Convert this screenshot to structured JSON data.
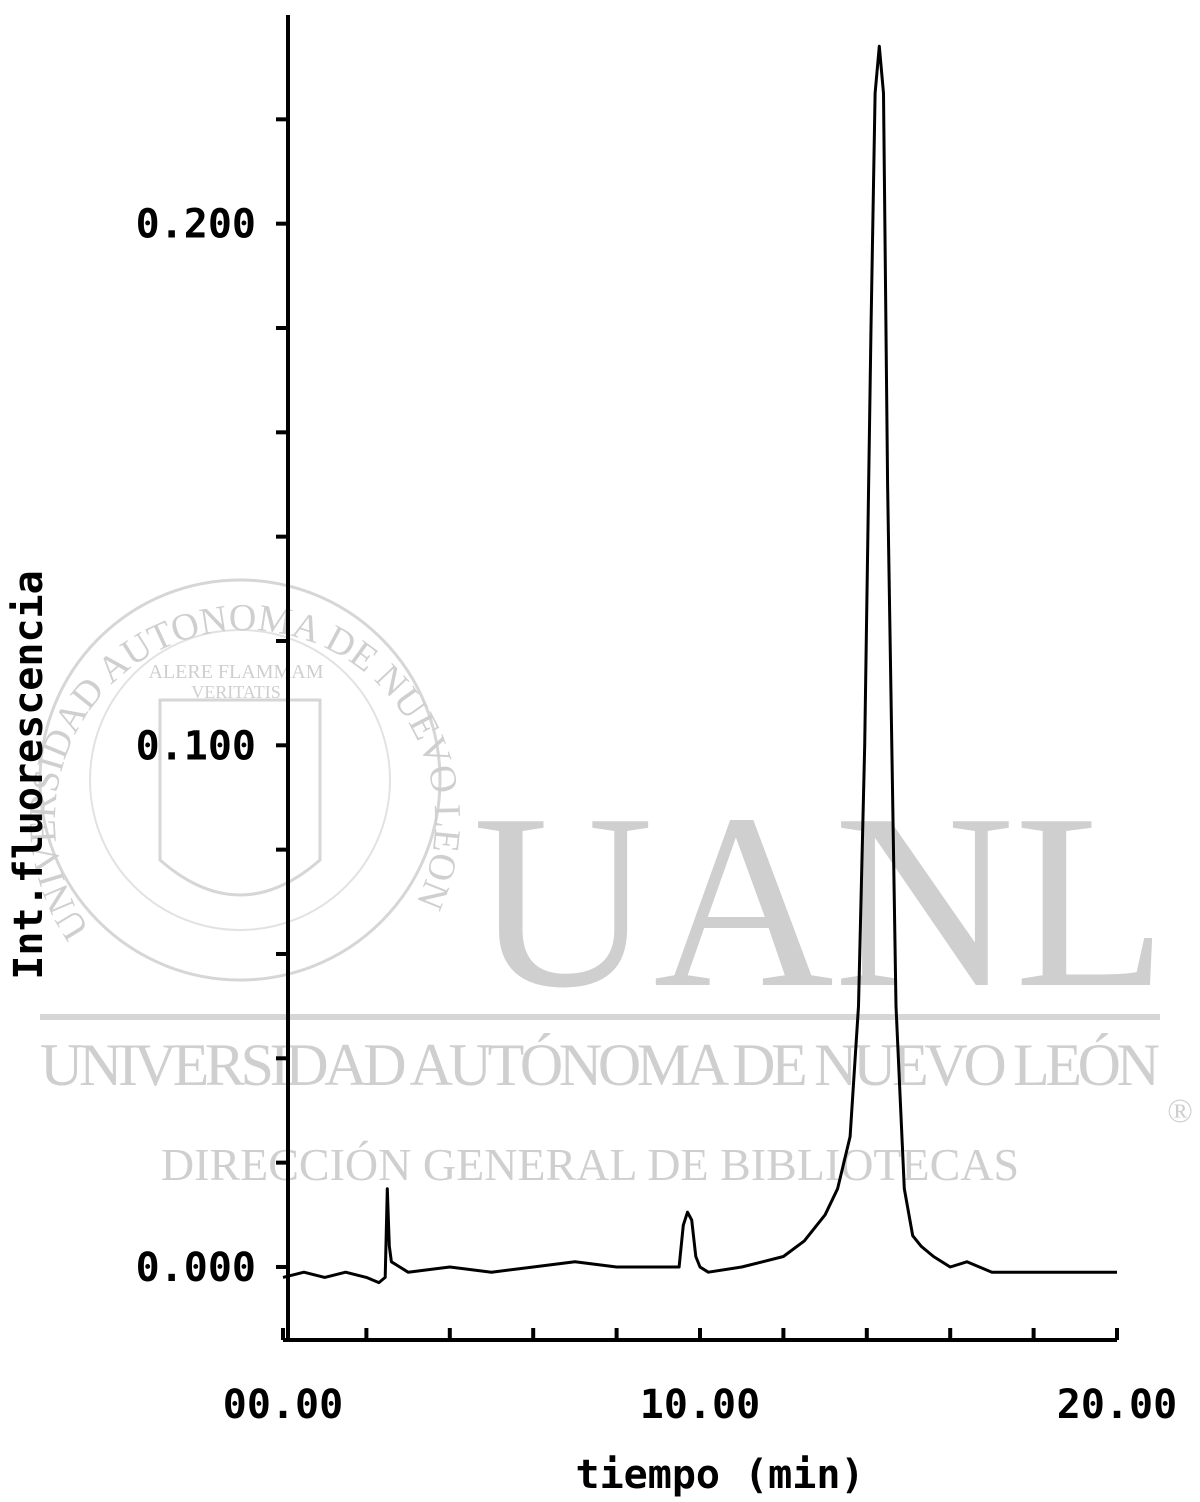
{
  "chart_data": {
    "type": "line",
    "xlabel": "tiempo (min)",
    "ylabel": "Int.fluorescencia",
    "color": "#000000",
    "xlim": [
      0,
      20
    ],
    "ylim": [
      -0.014,
      0.24
    ],
    "xticks": [
      {
        "value": 0,
        "label": "00.00"
      },
      {
        "value": 2,
        "label": null
      },
      {
        "value": 4,
        "label": null
      },
      {
        "value": 6,
        "label": null
      },
      {
        "value": 8,
        "label": null
      },
      {
        "value": 10,
        "label": "10.00"
      },
      {
        "value": 12,
        "label": null
      },
      {
        "value": 14,
        "label": null
      },
      {
        "value": 16,
        "label": null
      },
      {
        "value": 18,
        "label": null
      },
      {
        "value": 20,
        "label": "20.00"
      }
    ],
    "yticks": [
      {
        "value": 0,
        "label": "0.000"
      },
      {
        "value": 0.02,
        "label": null
      },
      {
        "value": 0.04,
        "label": null
      },
      {
        "value": 0.06,
        "label": null
      },
      {
        "value": 0.08,
        "label": null
      },
      {
        "value": 0.1,
        "label": "0.100"
      },
      {
        "value": 0.12,
        "label": null
      },
      {
        "value": 0.14,
        "label": null
      },
      {
        "value": 0.16,
        "label": null
      },
      {
        "value": 0.18,
        "label": null
      },
      {
        "value": 0.2,
        "label": "0.200"
      },
      {
        "value": 0.22,
        "label": null
      }
    ],
    "x": [
      0,
      0.5,
      1,
      1.5,
      2,
      2.3,
      2.45,
      2.5,
      2.55,
      2.6,
      2.8,
      3,
      4,
      5,
      6,
      7,
      8,
      9,
      9.5,
      9.6,
      9.7,
      9.8,
      9.9,
      10,
      10.2,
      11,
      11.5,
      12,
      12.5,
      13,
      13.3,
      13.6,
      13.8,
      13.95,
      14.1,
      14.2,
      14.3,
      14.4,
      14.5,
      14.6,
      14.7,
      14.9,
      15.1,
      15.3,
      15.6,
      16,
      16.4,
      17,
      18,
      19,
      20
    ],
    "values": [
      -0.002,
      -0.001,
      -0.002,
      -0.001,
      -0.002,
      -0.003,
      -0.002,
      0.015,
      0.004,
      0.001,
      0,
      -0.001,
      0,
      -0.001,
      0,
      0.001,
      0,
      0,
      0,
      0.008,
      0.0105,
      0.009,
      0.002,
      0,
      -0.001,
      0,
      0.001,
      0.002,
      0.005,
      0.01,
      0.015,
      0.025,
      0.05,
      0.1,
      0.18,
      0.225,
      0.234,
      0.225,
      0.15,
      0.1,
      0.05,
      0.015,
      0.006,
      0.004,
      0.002,
      0,
      0.001,
      -0.001,
      -0.001,
      -0.001,
      -0.001
    ]
  },
  "watermark": {
    "logo": "UANL",
    "university": "UNIVERSIDAD AUTÓNOMA DE NUEVO LEÓN",
    "department": "DIRECCIÓN GENERAL DE BIBLIOTECAS",
    "registered": "®",
    "motto_1": "ALERE FLAMMAM",
    "motto_2": "VERITATIS",
    "seal_ring": "UNIVERSIDAD AUTONOMA DE NUEVO LEON"
  }
}
